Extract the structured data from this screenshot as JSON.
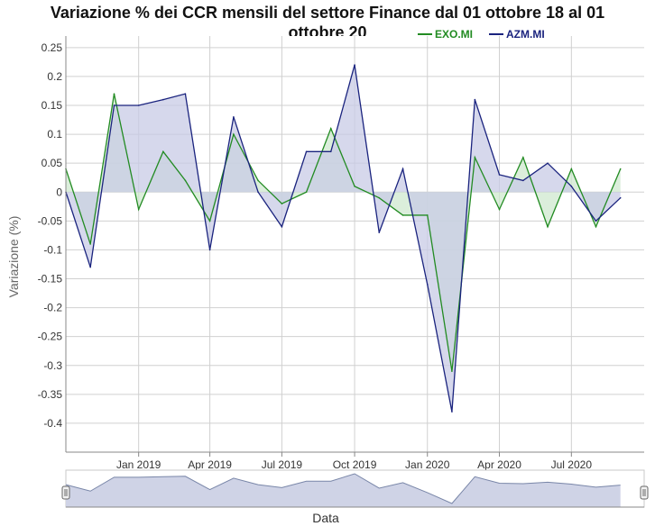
{
  "chart_data": {
    "type": "area",
    "title_line1": "Variazione % dei CCR mensili del settore Finance dal 01 ottobre 18 al 01",
    "title_line2": "ottobre 20",
    "xlabel": "Data",
    "ylabel": "Variazione (%)",
    "ylim": [
      -0.45,
      0.27
    ],
    "yticks": [
      "0.25",
      "0.2",
      "0.15",
      "0.1",
      "0.05",
      "0",
      "-0.05",
      "-0.1",
      "-0.15",
      "-0.2",
      "-0.25",
      "-0.3",
      "-0.35",
      "-0.4"
    ],
    "ytick_values": [
      0.25,
      0.2,
      0.15,
      0.1,
      0.05,
      0,
      -0.05,
      -0.1,
      -0.15,
      -0.2,
      -0.25,
      -0.3,
      -0.35,
      -0.4
    ],
    "x_dates": [
      "2018-10-01",
      "2018-11-01",
      "2018-12-01",
      "2019-01-01",
      "2019-02-01",
      "2019-03-01",
      "2019-04-01",
      "2019-05-01",
      "2019-06-01",
      "2019-07-01",
      "2019-08-01",
      "2019-09-01",
      "2019-10-01",
      "2019-11-01",
      "2019-12-01",
      "2020-01-01",
      "2020-02-01",
      "2020-03-01",
      "2020-04-01",
      "2020-05-01",
      "2020-06-01",
      "2020-07-01",
      "2020-08-01",
      "2020-09-01",
      "2020-10-01"
    ],
    "xticks": [
      {
        "label": "Jan 2019",
        "date": "2019-01-01"
      },
      {
        "label": "Apr 2019",
        "date": "2019-04-01"
      },
      {
        "label": "Jul 2019",
        "date": "2019-07-01"
      },
      {
        "label": "Oct 2019",
        "date": "2019-10-01"
      },
      {
        "label": "Jan 2020",
        "date": "2020-01-01"
      },
      {
        "label": "Apr 2020",
        "date": "2020-04-01"
      },
      {
        "label": "Jul 2020",
        "date": "2020-07-01"
      }
    ],
    "series": [
      {
        "name": "EXO.MI",
        "color": "#228b22",
        "fill": "#cfe8cf",
        "values": [
          0.04,
          -0.09,
          0.17,
          -0.03,
          0.07,
          0.02,
          -0.05,
          0.1,
          0.02,
          -0.02,
          0.0,
          0.11,
          0.01,
          -0.01,
          -0.04,
          -0.04,
          -0.31,
          0.06,
          -0.03,
          0.06,
          -0.06,
          0.04,
          -0.06,
          0.04
        ]
      },
      {
        "name": "AZM.MI",
        "color": "#1a237e",
        "fill": "#c8cbe6",
        "values": [
          0.0,
          -0.13,
          0.15,
          0.15,
          0.16,
          0.17,
          -0.1,
          0.13,
          0.0,
          -0.06,
          0.07,
          0.07,
          0.22,
          -0.07,
          0.04,
          -0.16,
          -0.38,
          0.16,
          0.03,
          0.02,
          0.05,
          0.01,
          -0.05,
          -0.01
        ]
      }
    ],
    "navigator_values": [
      0.0,
      -0.13,
      0.15,
      0.15,
      0.16,
      0.17,
      -0.1,
      0.13,
      0.0,
      -0.06,
      0.07,
      0.07,
      0.22,
      -0.07,
      0.04,
      -0.16,
      -0.38,
      0.16,
      0.03,
      0.02,
      0.05,
      0.01,
      -0.05,
      -0.01
    ],
    "grid": true,
    "legend": "top-right"
  }
}
